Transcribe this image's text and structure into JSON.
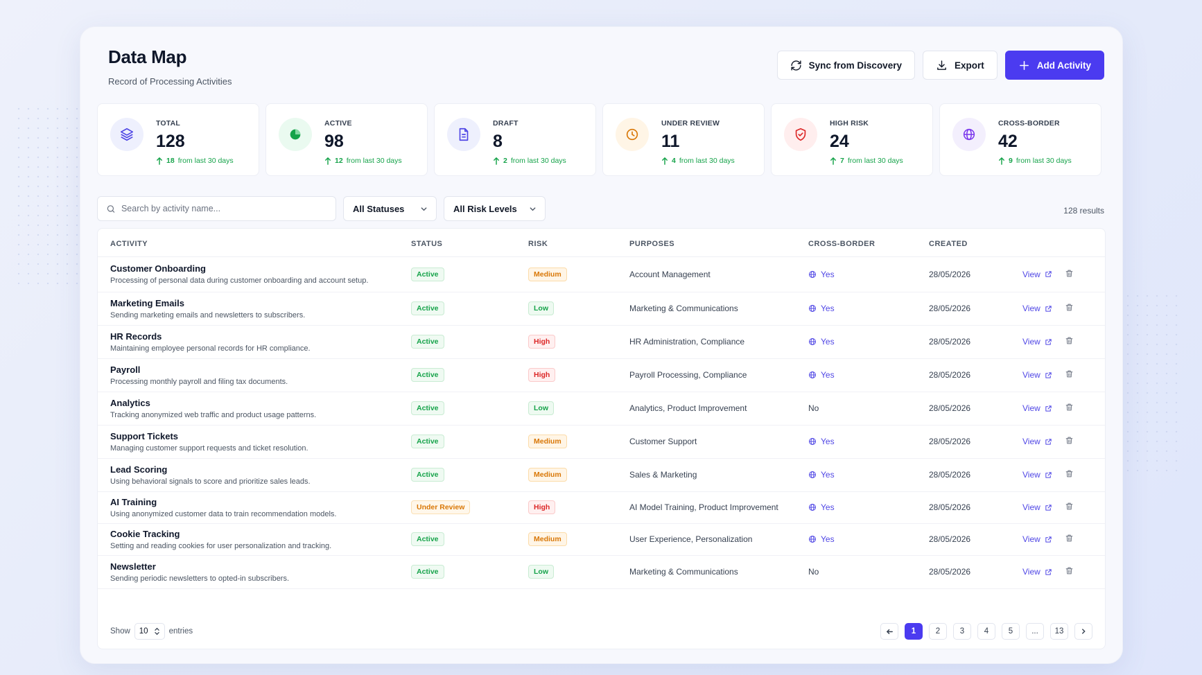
{
  "header": {
    "title": "Data Map",
    "subtitle": "Record of Processing Activities"
  },
  "actions": {
    "sync": "Sync from Discovery",
    "export": "Export",
    "add": "Add Activity"
  },
  "stats": [
    {
      "label": "TOTAL",
      "value": "128",
      "delta_value": "18",
      "delta_text": "from last 30 days",
      "icon": "layers-icon",
      "color": "#4f46e5"
    },
    {
      "label": "ACTIVE",
      "value": "98",
      "delta_value": "12",
      "delta_text": "from last 30 days",
      "icon": "pie-icon",
      "color": "#16a34a"
    },
    {
      "label": "DRAFT",
      "value": "8",
      "delta_value": "2",
      "delta_text": "from last 30 days",
      "icon": "document-icon",
      "color": "#4f46e5"
    },
    {
      "label": "UNDER REVIEW",
      "value": "11",
      "delta_value": "4",
      "delta_text": "from last 30 days",
      "icon": "clock-icon",
      "color": "#d97706"
    },
    {
      "label": "HIGH RISK",
      "value": "24",
      "delta_value": "7",
      "delta_text": "from last 30 days",
      "icon": "shield-icon",
      "color": "#dc2626"
    },
    {
      "label": "CROSS-BORDER",
      "value": "42",
      "delta_value": "9",
      "delta_text": "from last 30 days",
      "icon": "globe-icon",
      "color": "#7c3aed"
    }
  ],
  "filters": {
    "search_placeholder": "Search by activity name...",
    "status": "All Statuses",
    "risk": "All Risk Levels",
    "results": "128 results"
  },
  "table": {
    "columns": [
      "ACTIVITY",
      "STATUS",
      "RISK",
      "PURPOSES",
      "CROSS-BORDER",
      "CREATED"
    ],
    "view_label": "View",
    "rows": [
      {
        "name": "Customer Onboarding",
        "desc": "Processing of personal data during customer onboarding and account setup.",
        "status": "Active",
        "risk": "Medium",
        "purposes": "Account Management",
        "cross": "Yes",
        "created": "28/05/2026"
      },
      {
        "name": "Marketing Emails",
        "desc": "Sending marketing emails and newsletters to subscribers.",
        "status": "Active",
        "risk": "Low",
        "purposes": "Marketing & Communications",
        "cross": "Yes",
        "created": "28/05/2026"
      },
      {
        "name": "HR Records",
        "desc": "Maintaining employee personal records for HR compliance.",
        "status": "Active",
        "risk": "High",
        "purposes": "HR Administration, Compliance",
        "cross": "Yes",
        "created": "28/05/2026"
      },
      {
        "name": "Payroll",
        "desc": "Processing monthly payroll and filing tax documents.",
        "status": "Active",
        "risk": "High",
        "purposes": "Payroll Processing, Compliance",
        "cross": "Yes",
        "created": "28/05/2026"
      },
      {
        "name": "Analytics",
        "desc": "Tracking anonymized web traffic and product usage patterns.",
        "status": "Active",
        "risk": "Low",
        "purposes": "Analytics, Product Improvement",
        "cross": "No",
        "created": "28/05/2026"
      },
      {
        "name": "Support Tickets",
        "desc": "Managing customer support requests and ticket resolution.",
        "status": "Active",
        "risk": "Medium",
        "purposes": "Customer Support",
        "cross": "Yes",
        "created": "28/05/2026"
      },
      {
        "name": "Lead Scoring",
        "desc": "Using behavioral signals to score and prioritize sales leads.",
        "status": "Active",
        "risk": "Medium",
        "purposes": "Sales & Marketing",
        "cross": "Yes",
        "created": "28/05/2026"
      },
      {
        "name": "AI Training",
        "desc": "Using anonymized customer data to train recommendation models.",
        "status": "Under Review",
        "risk": "High",
        "purposes": "AI Model Training, Product Improvement",
        "cross": "Yes",
        "created": "28/05/2026"
      },
      {
        "name": "Cookie Tracking",
        "desc": "Setting and reading cookies for user personalization and tracking.",
        "status": "Active",
        "risk": "Medium",
        "purposes": "User Experience, Personalization",
        "cross": "Yes",
        "created": "28/05/2026"
      },
      {
        "name": "Newsletter",
        "desc": "Sending periodic newsletters to opted-in subscribers.",
        "status": "Active",
        "risk": "Low",
        "purposes": "Marketing & Communications",
        "cross": "No",
        "created": "28/05/2026"
      }
    ]
  },
  "footer": {
    "show_label": "Show",
    "entries_value": "10",
    "entries_label": "entries",
    "pages": [
      "1",
      "2",
      "3",
      "4",
      "5",
      "...",
      "13"
    ],
    "current_page": "1"
  }
}
